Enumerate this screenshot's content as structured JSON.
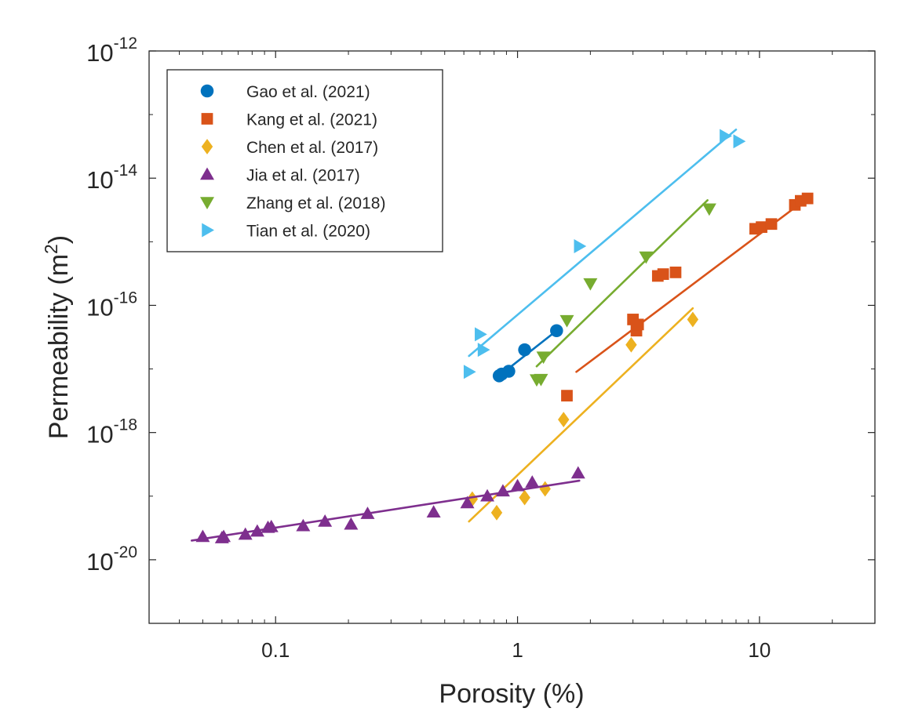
{
  "chart_data": {
    "type": "scatter",
    "xscale": "log",
    "yscale": "log",
    "xlim": [
      0.03,
      30
    ],
    "ylim": [
      1e-21,
      1e-12
    ],
    "xlabel": "Porosity (%)",
    "ylabel": "Permeability (m²)",
    "ylabel_base": "Permeability (m",
    "ylabel_sup": "2",
    "ylabel_close": ")",
    "grid": false,
    "legend_position": "top-left",
    "x_ticks": [
      {
        "value": 0.1,
        "label": "0.1"
      },
      {
        "value": 1,
        "label": "1"
      },
      {
        "value": 10,
        "label": "10"
      }
    ],
    "y_ticks": [
      {
        "value": 1e-20,
        "base": "10",
        "exp": "-20"
      },
      {
        "value": 1e-18,
        "base": "10",
        "exp": "-18"
      },
      {
        "value": 1e-16,
        "base": "10",
        "exp": "-16"
      },
      {
        "value": 1e-14,
        "base": "10",
        "exp": "-14"
      },
      {
        "value": 1e-12,
        "base": "10",
        "exp": "-12"
      }
    ],
    "series": [
      {
        "name": "Gao et al. (2021)",
        "color": "#0072BD",
        "marker": "circle",
        "points": [
          [
            0.84,
            7.8e-18
          ],
          [
            0.86,
            8.3e-18
          ],
          [
            0.92,
            9.2e-18
          ],
          [
            1.07,
            2e-17
          ],
          [
            1.45,
            4e-17
          ]
        ],
        "fit": [
          [
            0.84,
            7.8e-18
          ],
          [
            1.45,
            4e-17
          ]
        ]
      },
      {
        "name": "Kang et al. (2021)",
        "color": "#D95319",
        "marker": "square",
        "points": [
          [
            1.6,
            3.8e-18
          ],
          [
            3.0,
            6e-17
          ],
          [
            3.1,
            4e-17
          ],
          [
            3.15,
            5e-17
          ],
          [
            3.8,
            2.9e-16
          ],
          [
            4.0,
            3.1e-16
          ],
          [
            4.5,
            3.3e-16
          ],
          [
            9.6,
            1.6e-15
          ],
          [
            10.2,
            1.7e-15
          ],
          [
            11.2,
            1.9e-15
          ],
          [
            14.0,
            3.8e-15
          ],
          [
            14.8,
            4.4e-15
          ],
          [
            15.8,
            4.8e-15
          ]
        ],
        "fit": [
          [
            1.75,
            9e-18
          ],
          [
            16.5,
            5.5e-15
          ]
        ]
      },
      {
        "name": "Chen et al. (2017)",
        "color": "#EDB120",
        "marker": "diamond",
        "points": [
          [
            0.65,
            9e-20
          ],
          [
            0.82,
            5.5e-20
          ],
          [
            1.07,
            9.5e-20
          ],
          [
            1.3,
            1.3e-19
          ],
          [
            1.55,
            1.6e-18
          ],
          [
            2.95,
            2.4e-17
          ],
          [
            5.3,
            6e-17
          ]
        ],
        "fit": [
          [
            0.63,
            4e-20
          ],
          [
            5.3,
            9e-17
          ]
        ]
      },
      {
        "name": "Jia et al. (2017)",
        "color": "#7E2F8E",
        "marker": "triangle-up",
        "points": [
          [
            0.05,
            2.3e-20
          ],
          [
            0.06,
            2.2e-20
          ],
          [
            0.061,
            2.3e-20
          ],
          [
            0.075,
            2.5e-20
          ],
          [
            0.084,
            2.8e-20
          ],
          [
            0.093,
            3.2e-20
          ],
          [
            0.096,
            3.3e-20
          ],
          [
            0.13,
            3.4e-20
          ],
          [
            0.16,
            4e-20
          ],
          [
            0.205,
            3.6e-20
          ],
          [
            0.24,
            5.3e-20
          ],
          [
            0.45,
            5.6e-20
          ],
          [
            0.62,
            7.8e-20
          ],
          [
            0.75,
            1e-19
          ],
          [
            0.87,
            1.2e-19
          ],
          [
            1.0,
            1.45e-19
          ],
          [
            1.15,
            1.65e-19
          ],
          [
            1.78,
            2.3e-19
          ]
        ],
        "fit": [
          [
            0.045,
            2e-20
          ],
          [
            1.8,
            1.75e-19
          ]
        ]
      },
      {
        "name": "Zhang et al. (2018)",
        "color": "#77AC30",
        "marker": "triangle-down",
        "points": [
          [
            1.2,
            6.8e-18
          ],
          [
            1.25,
            6.9e-18
          ],
          [
            1.28,
            1.55e-17
          ],
          [
            1.6,
            5.8e-17
          ],
          [
            2.0,
            2.2e-16
          ],
          [
            3.4,
            5.8e-16
          ],
          [
            6.2,
            3.3e-15
          ]
        ],
        "fit": [
          [
            1.2,
            1.1e-17
          ],
          [
            6.1,
            4.5e-15
          ]
        ]
      },
      {
        "name": "Tian et al. (2020)",
        "color": "#4DBEEE",
        "marker": "triangle-right",
        "points": [
          [
            0.63,
            9e-18
          ],
          [
            0.7,
            3.5e-17
          ],
          [
            0.72,
            2e-17
          ],
          [
            1.8,
            8.5e-16
          ],
          [
            7.2,
            4.6e-14
          ],
          [
            8.2,
            3.8e-14
          ]
        ],
        "fit": [
          [
            0.63,
            1.6e-17
          ],
          [
            8.0,
            5.8e-14
          ]
        ]
      }
    ]
  }
}
